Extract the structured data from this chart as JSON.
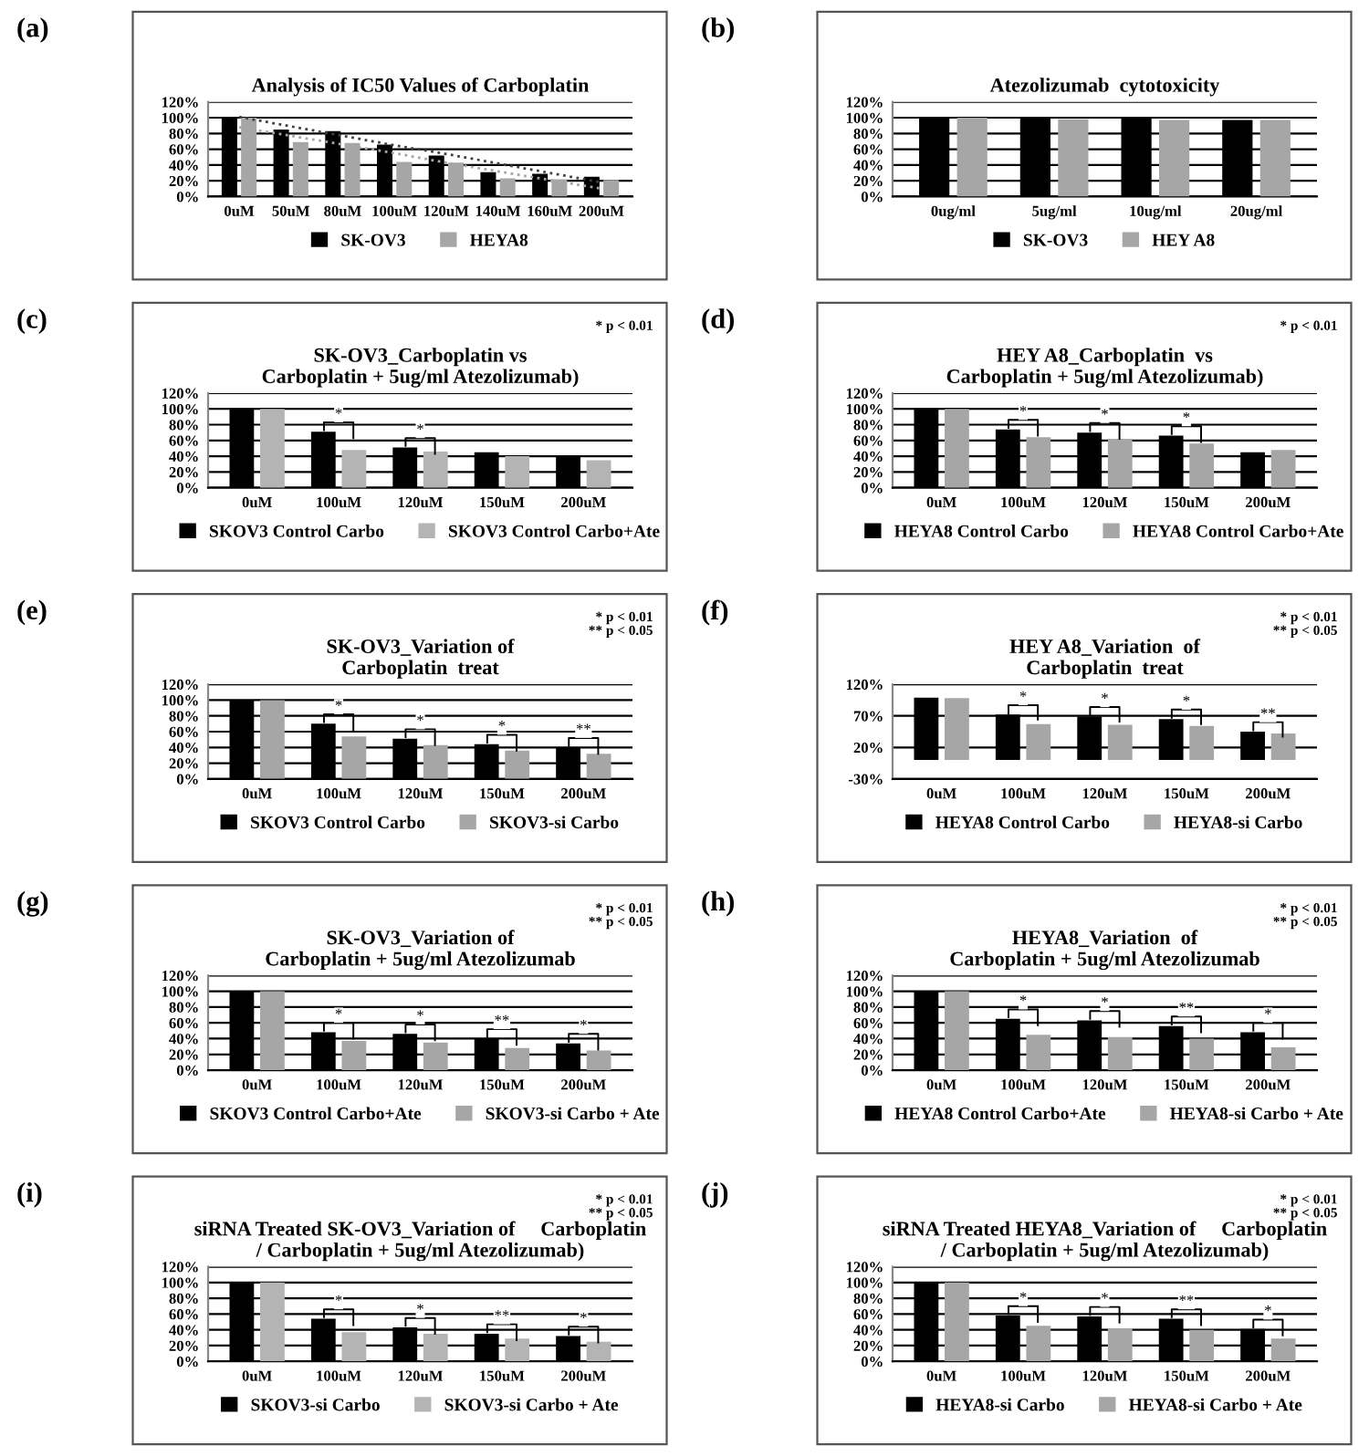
{
  "chart_data": [
    {
      "type": "bar",
      "title": "Analysis of IC50 Values of Carboplatin",
      "annotations": [
        "(a)"
      ],
      "categories": [
        "0uM",
        "50uM",
        "80uM",
        "100uM",
        "120uM",
        "140uM",
        "160uM",
        "200uM"
      ],
      "series": [
        {
          "name": "SK-OV3",
          "color": "#000000",
          "values": [
            100,
            85,
            83,
            66,
            52,
            31,
            29,
            25
          ]
        },
        {
          "name": "HEYA8",
          "color": "#a6a6a6",
          "values": [
            100,
            69,
            68,
            44,
            43,
            23,
            22,
            21
          ]
        },
        {
          "type": "line",
          "line_style": "dotted",
          "color": "#404040",
          "values": [
            101,
            89,
            77,
            65,
            54,
            42,
            30,
            18
          ]
        },
        {
          "type": "line",
          "line_style": "dotted",
          "color": "#a6a6a6",
          "values": [
            88,
            77,
            66,
            55,
            43,
            32,
            21,
            10
          ]
        }
      ],
      "ylim": [
        0,
        120
      ],
      "yticks": [
        {
          "value": 0,
          "label": "0%"
        },
        {
          "value": 20,
          "label": "20%"
        },
        {
          "value": 40,
          "label": "40%"
        },
        {
          "value": 60,
          "label": "60%"
        },
        {
          "value": 80,
          "label": "80%"
        },
        {
          "value": 100,
          "label": "100%"
        },
        {
          "value": 120,
          "label": "120%"
        }
      ],
      "grid": "y",
      "legend": "bottom"
    },
    {
      "type": "bar",
      "title": "Atezolizumab  cytotoxicity",
      "annotations": [
        "(b)"
      ],
      "categories": [
        "0ug/ml",
        "5ug/ml",
        "10ug/ml",
        "20ug/ml"
      ],
      "series": [
        {
          "name": "SK-OV3",
          "color": "#000000",
          "values": [
            100,
            100,
            99,
            97
          ]
        },
        {
          "name": "HEY A8",
          "color": "#a6a6a6",
          "values": [
            100,
            98,
            97,
            97
          ]
        }
      ],
      "ylim": [
        0,
        120
      ],
      "yticks": [
        {
          "value": 0,
          "label": "0%"
        },
        {
          "value": 20,
          "label": "20%"
        },
        {
          "value": 40,
          "label": "40%"
        },
        {
          "value": 60,
          "label": "60%"
        },
        {
          "value": 80,
          "label": "80%"
        },
        {
          "value": 100,
          "label": "100%"
        },
        {
          "value": 120,
          "label": "120%"
        }
      ],
      "grid": "y",
      "legend": "bottom"
    },
    {
      "type": "bar",
      "title": "SK-OV3_Carboplatin vs\nCarboplatin + 5ug/ml Atezolizumab)",
      "annotations": [
        "(c)",
        "* p < 0.01",
        "*",
        "*"
      ],
      "categories": [
        "0uM",
        "100uM",
        "120uM",
        "150uM",
        "200uM"
      ],
      "series": [
        {
          "name": "SKOV3 Control Carbo",
          "color": "#000000",
          "values": [
            100,
            71,
            51,
            45,
            39
          ]
        },
        {
          "name": "SKOV3 Control Carbo+Ate",
          "color": "#b4b4b4",
          "values": [
            100,
            48,
            46,
            40,
            35
          ]
        }
      ],
      "ylim": [
        0,
        120
      ],
      "yticks": [
        {
          "value": 0,
          "label": "0%"
        },
        {
          "value": 20,
          "label": "20%"
        },
        {
          "value": 40,
          "label": "40%"
        },
        {
          "value": 60,
          "label": "60%"
        },
        {
          "value": 80,
          "label": "80%"
        },
        {
          "value": 100,
          "label": "100%"
        },
        {
          "value": 120,
          "label": "120%"
        }
      ],
      "grid": "y",
      "legend": "bottom"
    },
    {
      "type": "bar",
      "title": "HEY A8_Carboplatin  vs\nCarboplatin + 5ug/ml Atezolizumab)",
      "annotations": [
        "(d)",
        "* p < 0.01",
        "*",
        "*",
        "*"
      ],
      "categories": [
        "0uM",
        "100uM",
        "120uM",
        "150uM",
        "200uM"
      ],
      "series": [
        {
          "name": "HEYA8 Control Carbo",
          "color": "#000000",
          "values": [
            100,
            74,
            70,
            66,
            45
          ]
        },
        {
          "name": "HEYA8 Control Carbo+Ate",
          "color": "#a6a6a6",
          "values": [
            100,
            64,
            62,
            56,
            48
          ]
        }
      ],
      "ylim": [
        0,
        120
      ],
      "yticks": [
        {
          "value": 0,
          "label": "0%"
        },
        {
          "value": 20,
          "label": "20%"
        },
        {
          "value": 40,
          "label": "40%"
        },
        {
          "value": 60,
          "label": "60%"
        },
        {
          "value": 80,
          "label": "80%"
        },
        {
          "value": 100,
          "label": "100%"
        },
        {
          "value": 120,
          "label": "120%"
        }
      ],
      "grid": "y",
      "legend": "bottom"
    },
    {
      "type": "bar",
      "title": "SK-OV3_Variation of\nCarboplatin  treat",
      "annotations": [
        "(e)",
        "* p < 0.01\n** p < 0.05",
        "*",
        "*",
        "*",
        "**"
      ],
      "categories": [
        "0uM",
        "100uM",
        "120uM",
        "150uM",
        "200uM"
      ],
      "series": [
        {
          "name": "SKOV3 Control Carbo",
          "color": "#000000",
          "values": [
            100,
            70,
            51,
            44,
            40
          ]
        },
        {
          "name": "SKOV3-si Carbo",
          "color": "#a6a6a6",
          "values": [
            100,
            54,
            43,
            36,
            32
          ]
        }
      ],
      "ylim": [
        0,
        120
      ],
      "yticks": [
        {
          "value": 0,
          "label": "0%"
        },
        {
          "value": 20,
          "label": "20%"
        },
        {
          "value": 40,
          "label": "40%"
        },
        {
          "value": 60,
          "label": "60%"
        },
        {
          "value": 80,
          "label": "80%"
        },
        {
          "value": 100,
          "label": "100%"
        },
        {
          "value": 120,
          "label": "120%"
        }
      ],
      "grid": "y",
      "legend": "bottom"
    },
    {
      "type": "bar",
      "title": "HEY A8_Variation  of\nCarboplatin  treat",
      "annotations": [
        "(f)",
        "* p < 0.01\n** p < 0.05",
        "*",
        "*",
        "*",
        "**"
      ],
      "categories": [
        "0uM",
        "100uM",
        "120uM",
        "150uM",
        "200uM"
      ],
      "series": [
        {
          "name": "HEYA8 Control Carbo",
          "color": "#000000",
          "values": [
            99,
            72,
            69,
            65,
            45
          ]
        },
        {
          "name": "HEYA8-si Carbo",
          "color": "#a6a6a6",
          "values": [
            98,
            57,
            56,
            54,
            42
          ]
        }
      ],
      "ylim": [
        -30,
        120
      ],
      "yticks": [
        {
          "value": -30,
          "label": "-30%"
        },
        {
          "value": 20,
          "label": "20%"
        },
        {
          "value": 70,
          "label": "70%"
        },
        {
          "value": 120,
          "label": "120%"
        }
      ],
      "grid": "y",
      "legend": "bottom"
    },
    {
      "type": "bar",
      "title": "SK-OV3_Variation of\nCarboplatin + 5ug/ml Atezolizumab",
      "annotations": [
        "(g)",
        "* p < 0.01\n** p < 0.05",
        "*",
        "*",
        "**",
        "*"
      ],
      "categories": [
        "0uM",
        "100uM",
        "120uM",
        "150uM",
        "200uM"
      ],
      "series": [
        {
          "name": "SKOV3 Control Carbo+Ate",
          "color": "#000000",
          "values": [
            100,
            48,
            46,
            40,
            34
          ]
        },
        {
          "name": "SKOV3-si Carbo + Ate",
          "color": "#a6a6a6",
          "values": [
            100,
            37,
            35,
            28,
            25
          ]
        }
      ],
      "ylim": [
        0,
        120
      ],
      "yticks": [
        {
          "value": 0,
          "label": "0%"
        },
        {
          "value": 20,
          "label": "20%"
        },
        {
          "value": 40,
          "label": "40%"
        },
        {
          "value": 60,
          "label": "60%"
        },
        {
          "value": 80,
          "label": "80%"
        },
        {
          "value": 100,
          "label": "100%"
        },
        {
          "value": 120,
          "label": "120%"
        }
      ],
      "grid": "y",
      "legend": "bottom"
    },
    {
      "type": "bar",
      "title": "HEYA8_Variation  of\nCarboplatin + 5ug/ml Atezolizumab",
      "annotations": [
        "(h)",
        "* p < 0.01\n** p < 0.05",
        "*",
        "*",
        "**",
        "*"
      ],
      "categories": [
        "0uM",
        "100uM",
        "120uM",
        "150uM",
        "200uM"
      ],
      "series": [
        {
          "name": "HEYA8 Control Carbo+Ate",
          "color": "#000000",
          "values": [
            100,
            65,
            63,
            56,
            48
          ]
        },
        {
          "name": "HEYA8-si Carbo + Ate",
          "color": "#a6a6a6",
          "values": [
            100,
            45,
            42,
            40,
            29
          ]
        }
      ],
      "ylim": [
        0,
        120
      ],
      "yticks": [
        {
          "value": 0,
          "label": "0%"
        },
        {
          "value": 20,
          "label": "20%"
        },
        {
          "value": 40,
          "label": "40%"
        },
        {
          "value": 60,
          "label": "60%"
        },
        {
          "value": 80,
          "label": "80%"
        },
        {
          "value": 100,
          "label": "100%"
        },
        {
          "value": 120,
          "label": "120%"
        }
      ],
      "grid": "y",
      "legend": "bottom"
    },
    {
      "type": "bar",
      "title": "siRNA Treated SK-OV3_Variation of     Carboplatin\n/ Carboplatin + 5ug/ml Atezolizumab)",
      "annotations": [
        "(i)",
        "* p < 0.01\n** p < 0.05",
        "*",
        "*",
        "**",
        "*"
      ],
      "categories": [
        "0uM",
        "100uM",
        "120uM",
        "150uM",
        "200uM"
      ],
      "series": [
        {
          "name": "SKOV3-si Carbo",
          "color": "#000000",
          "values": [
            100,
            54,
            43,
            35,
            32
          ]
        },
        {
          "name": "SKOV3-si Carbo + Ate",
          "color": "#b4b4b4",
          "values": [
            100,
            37,
            35,
            29,
            25
          ]
        }
      ],
      "ylim": [
        0,
        120
      ],
      "yticks": [
        {
          "value": 0,
          "label": "0%"
        },
        {
          "value": 20,
          "label": "20%"
        },
        {
          "value": 40,
          "label": "40%"
        },
        {
          "value": 60,
          "label": "60%"
        },
        {
          "value": 80,
          "label": "80%"
        },
        {
          "value": 100,
          "label": "100%"
        },
        {
          "value": 120,
          "label": "120%"
        }
      ],
      "grid": "y",
      "legend": "bottom"
    },
    {
      "type": "bar",
      "title": "siRNA Treated HEYA8_Variation of     Carboplatin\n/ Carboplatin + 5ug/ml Atezolizumab)",
      "annotations": [
        "(j)",
        "* p < 0.01\n** p < 0.05",
        "*",
        "*",
        "**",
        "*"
      ],
      "categories": [
        "0uM",
        "100uM",
        "120uM",
        "150uM",
        "200uM"
      ],
      "series": [
        {
          "name": "HEYA8-si Carbo",
          "color": "#000000",
          "values": [
            100,
            58,
            57,
            54,
            41
          ]
        },
        {
          "name": "HEYA8-si Carbo + Ate",
          "color": "#a6a6a6",
          "values": [
            100,
            45,
            42,
            40,
            29
          ]
        }
      ],
      "ylim": [
        0,
        120
      ],
      "yticks": [
        {
          "value": 0,
          "label": "0%"
        },
        {
          "value": 20,
          "label": "20%"
        },
        {
          "value": 40,
          "label": "40%"
        },
        {
          "value": 60,
          "label": "60%"
        },
        {
          "value": 80,
          "label": "80%"
        },
        {
          "value": 100,
          "label": "100%"
        },
        {
          "value": 120,
          "label": "120%"
        }
      ],
      "grid": "y",
      "legend": "bottom"
    }
  ]
}
